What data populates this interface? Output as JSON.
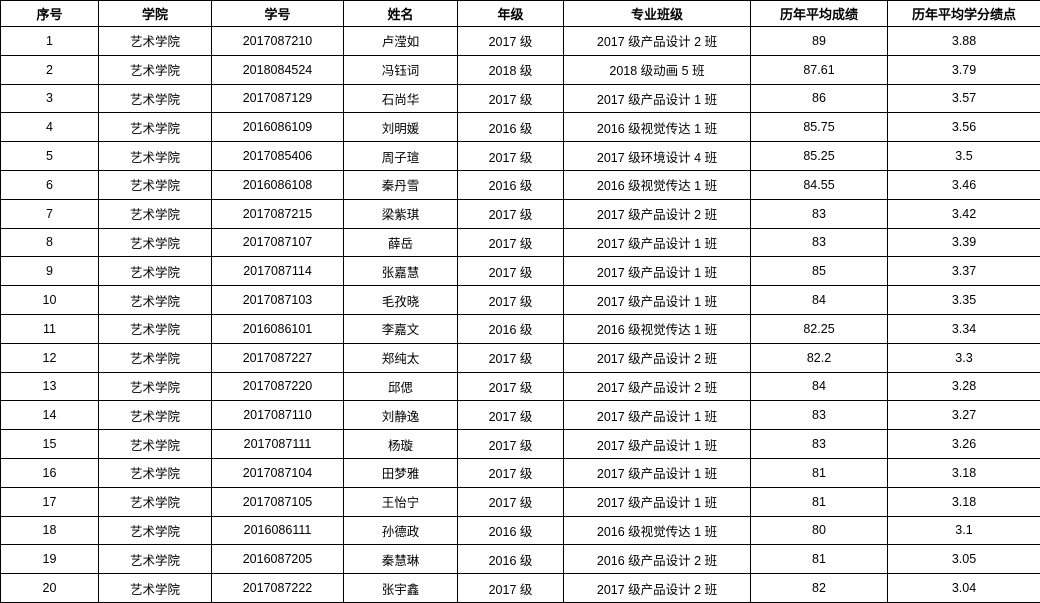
{
  "table": {
    "columns": [
      {
        "key": "index",
        "label": "序号"
      },
      {
        "key": "college",
        "label": "学院"
      },
      {
        "key": "student-id",
        "label": "学号"
      },
      {
        "key": "name",
        "label": "姓名"
      },
      {
        "key": "grade",
        "label": "年级"
      },
      {
        "key": "major-class",
        "label": "专业班级"
      },
      {
        "key": "avg-score",
        "label": "历年平均成绩"
      },
      {
        "key": "avg-gpa",
        "label": "历年平均学分绩点"
      }
    ],
    "rows": [
      [
        "1",
        "艺术学院",
        "2017087210",
        "卢滢如",
        "2017 级",
        "2017 级产品设计 2 班",
        "89",
        "3.88"
      ],
      [
        "2",
        "艺术学院",
        "2018084524",
        "冯钰词",
        "2018 级",
        "2018 级动画 5 班",
        "87.61",
        "3.79"
      ],
      [
        "3",
        "艺术学院",
        "2017087129",
        "石尚华",
        "2017 级",
        "2017 级产品设计 1 班",
        "86",
        "3.57"
      ],
      [
        "4",
        "艺术学院",
        "2016086109",
        "刘明媛",
        "2016 级",
        "2016 级视觉传达 1 班",
        "85.75",
        "3.56"
      ],
      [
        "5",
        "艺术学院",
        "2017085406",
        "周子瑄",
        "2017 级",
        "2017 级环境设计 4 班",
        "85.25",
        "3.5"
      ],
      [
        "6",
        "艺术学院",
        "2016086108",
        "秦丹雪",
        "2016 级",
        "2016 级视觉传达 1 班",
        "84.55",
        "3.46"
      ],
      [
        "7",
        "艺术学院",
        "2017087215",
        "梁紫琪",
        "2017 级",
        "2017 级产品设计 2 班",
        "83",
        "3.42"
      ],
      [
        "8",
        "艺术学院",
        "2017087107",
        "薛岳",
        "2017 级",
        "2017 级产品设计 1 班",
        "83",
        "3.39"
      ],
      [
        "9",
        "艺术学院",
        "2017087114",
        "张嘉慧",
        "2017 级",
        "2017 级产品设计 1 班",
        "85",
        "3.37"
      ],
      [
        "10",
        "艺术学院",
        "2017087103",
        "毛孜晓",
        "2017 级",
        "2017 级产品设计 1 班",
        "84",
        "3.35"
      ],
      [
        "11",
        "艺术学院",
        "2016086101",
        "李嘉文",
        "2016 级",
        "2016 级视觉传达 1 班",
        "82.25",
        "3.34"
      ],
      [
        "12",
        "艺术学院",
        "2017087227",
        "郑纯太",
        "2017 级",
        "2017 级产品设计 2 班",
        "82.2",
        "3.3"
      ],
      [
        "13",
        "艺术学院",
        "2017087220",
        "邱偲",
        "2017 级",
        "2017 级产品设计 2 班",
        "84",
        "3.28"
      ],
      [
        "14",
        "艺术学院",
        "2017087110",
        "刘静逸",
        "2017 级",
        "2017 级产品设计 1 班",
        "83",
        "3.27"
      ],
      [
        "15",
        "艺术学院",
        "2017087111",
        "杨璇",
        "2017 级",
        "2017 级产品设计 1 班",
        "83",
        "3.26"
      ],
      [
        "16",
        "艺术学院",
        "2017087104",
        "田梦雅",
        "2017 级",
        "2017 级产品设计 1 班",
        "81",
        "3.18"
      ],
      [
        "17",
        "艺术学院",
        "2017087105",
        "王怡宁",
        "2017 级",
        "2017 级产品设计 1 班",
        "81",
        "3.18"
      ],
      [
        "18",
        "艺术学院",
        "2016086111",
        "孙德政",
        "2016 级",
        "2016 级视觉传达 1 班",
        "80",
        "3.1"
      ],
      [
        "19",
        "艺术学院",
        "2016087205",
        "秦慧琳",
        "2016 级",
        "2016 级产品设计 2 班",
        "81",
        "3.05"
      ],
      [
        "20",
        "艺术学院",
        "2017087222",
        "张宇鑫",
        "2017 级",
        "2017 级产品设计 2 班",
        "82",
        "3.04"
      ]
    ]
  }
}
